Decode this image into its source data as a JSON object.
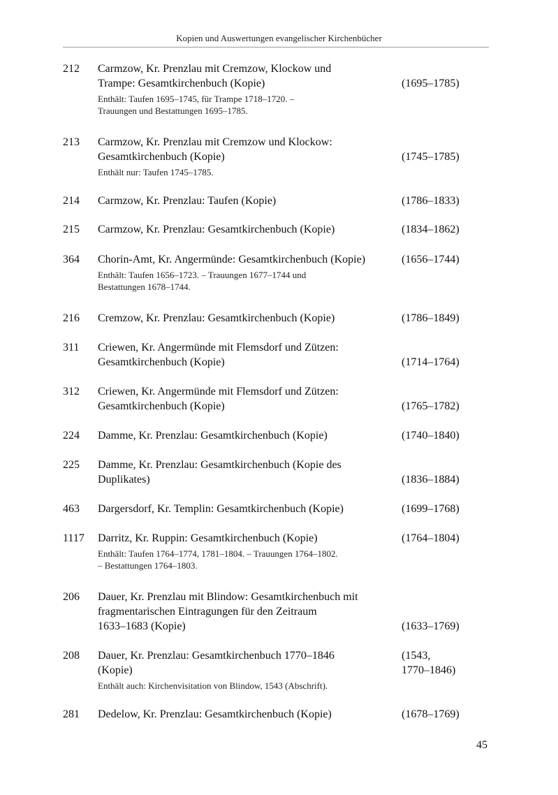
{
  "header": "Kopien und Auswertungen evangelischer Kirchenbücher",
  "page_number": "45",
  "entries": [
    {
      "num": "212",
      "main": [
        "Carmzow, Kr. Prenzlau mit Cremzow, Klockow und",
        "Trampe: Gesamtkirchenbuch (Kopie)"
      ],
      "date": [
        "(1695–1785)"
      ],
      "note": [
        "Enthält: Taufen 1695–1745, für Trampe 1718–1720. –",
        "Trauungen und Bestattungen 1695–1785."
      ]
    },
    {
      "num": "213",
      "main": [
        "Carmzow, Kr. Prenzlau mit Cremzow und Klockow:",
        "Gesamtkirchenbuch (Kopie)"
      ],
      "date": [
        "(1745–1785)"
      ],
      "note": [
        "Enthält nur: Taufen 1745–1785."
      ]
    },
    {
      "num": "214",
      "main": [
        "Carmzow, Kr. Prenzlau: Taufen (Kopie)"
      ],
      "date": [
        "(1786–1833)"
      ],
      "note": []
    },
    {
      "num": "215",
      "main": [
        "Carmzow, Kr. Prenzlau: Gesamtkirchenbuch (Kopie)"
      ],
      "date": [
        "(1834–1862)"
      ],
      "note": []
    },
    {
      "num": "364",
      "main": [
        "Chorin-Amt, Kr. Angermünde: Gesamtkirchenbuch (Kopie)"
      ],
      "date": [
        "(1656–1744)"
      ],
      "note": [
        "Enthält: Taufen 1656–1723. – Trauungen 1677–1744 und",
        "Bestattungen 1678–1744."
      ]
    },
    {
      "num": "216",
      "main": [
        "Cremzow, Kr. Prenzlau: Gesamtkirchenbuch (Kopie)"
      ],
      "date": [
        "(1786–1849)"
      ],
      "note": []
    },
    {
      "num": "311",
      "main": [
        "Criewen, Kr. Angermünde mit Flemsdorf und Zützen:",
        "Gesamtkirchenbuch (Kopie)"
      ],
      "date": [
        "(1714–1764)"
      ],
      "note": []
    },
    {
      "num": "312",
      "main": [
        "Criewen, Kr. Angermünde mit Flemsdorf und Zützen:",
        "Gesamtkirchenbuch (Kopie)"
      ],
      "date": [
        "(1765–1782)"
      ],
      "note": []
    },
    {
      "num": "224",
      "main": [
        "Damme, Kr. Prenzlau: Gesamtkirchenbuch (Kopie)"
      ],
      "date": [
        "(1740–1840)"
      ],
      "note": []
    },
    {
      "num": "225",
      "main": [
        "Damme, Kr. Prenzlau: Gesamtkirchenbuch (Kopie des",
        "Duplikates)"
      ],
      "date": [
        "(1836–1884)"
      ],
      "note": []
    },
    {
      "num": "463",
      "main": [
        "Dargersdorf, Kr. Templin: Gesamtkirchenbuch (Kopie)"
      ],
      "date": [
        "(1699–1768)"
      ],
      "note": []
    },
    {
      "num": "1117",
      "main": [
        "Darritz, Kr. Ruppin: Gesamtkirchenbuch (Kopie)"
      ],
      "date": [
        "(1764–1804)"
      ],
      "note": [
        "Enthält: Taufen 1764–1774, 1781–1804. – Trauungen 1764–1802.",
        "– Bestattungen 1764–1803."
      ]
    },
    {
      "num": "206",
      "main": [
        "Dauer, Kr. Prenzlau mit Blindow: Gesamtkirchenbuch mit",
        "fragmentarischen Eintragungen für den Zeitraum",
        "1633–1683 (Kopie)"
      ],
      "date": [
        "(1633–1769)"
      ],
      "note": []
    },
    {
      "num": "208",
      "main": [
        "Dauer, Kr. Prenzlau: Gesamtkirchenbuch 1770–1846",
        "(Kopie)"
      ],
      "date": [
        "(1543,",
        "1770–1846)"
      ],
      "note": [
        "Enthält auch: Kirchenvisitation von Blindow, 1543 (Abschrift)."
      ]
    },
    {
      "num": "281",
      "main": [
        "Dedelow, Kr. Prenzlau: Gesamtkirchenbuch (Kopie)"
      ],
      "date": [
        "(1678–1769)"
      ],
      "note": []
    }
  ]
}
